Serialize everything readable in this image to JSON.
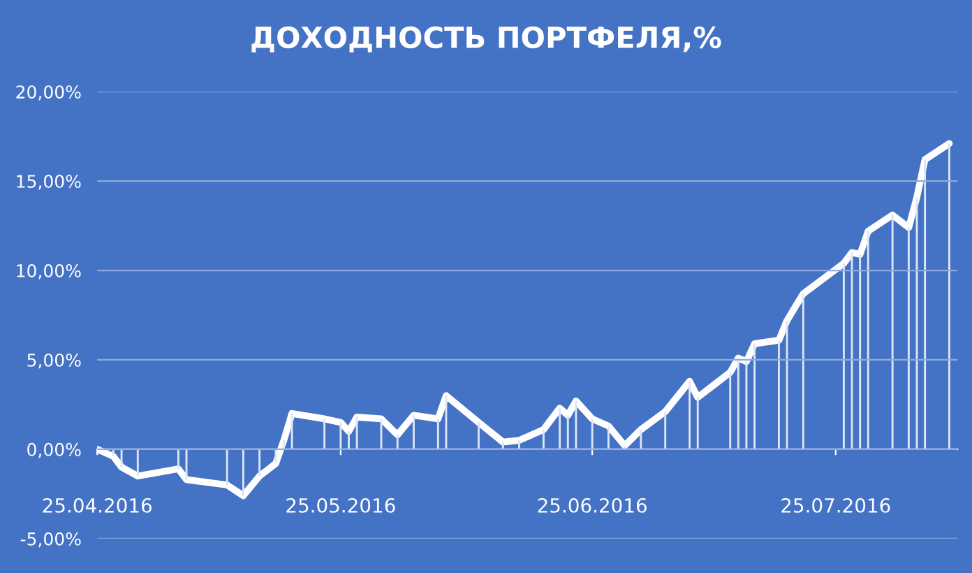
{
  "chart_data": {
    "type": "line",
    "title": "ДОХОДНОСТЬ ПОРТФЕЛЯ,%",
    "x": [
      "2016-04-25",
      "2016-04-27",
      "2016-04-28",
      "2016-04-30",
      "2016-05-05",
      "2016-05-06",
      "2016-05-11",
      "2016-05-13",
      "2016-05-15",
      "2016-05-17",
      "2016-05-18",
      "2016-05-19",
      "2016-05-23",
      "2016-05-25",
      "2016-05-26",
      "2016-05-27",
      "2016-05-30",
      "2016-06-01",
      "2016-06-03",
      "2016-06-06",
      "2016-06-07",
      "2016-06-11",
      "2016-06-14",
      "2016-06-16",
      "2016-06-19",
      "2016-06-21",
      "2016-06-22",
      "2016-06-23",
      "2016-06-25",
      "2016-06-27",
      "2016-06-29",
      "2016-07-01",
      "2016-07-04",
      "2016-07-07",
      "2016-07-08",
      "2016-07-12",
      "2016-07-13",
      "2016-07-14",
      "2016-07-15",
      "2016-07-18",
      "2016-07-19",
      "2016-07-21",
      "2016-07-26",
      "2016-07-27",
      "2016-07-28",
      "2016-07-29",
      "2016-08-01",
      "2016-08-03",
      "2016-08-04",
      "2016-08-05",
      "2016-08-08"
    ],
    "series": [
      {
        "type": "bar",
        "color": "#dce6f5",
        "values": [
          0.0,
          -0.4,
          -1.0,
          -1.5,
          -1.1,
          -1.7,
          -2.0,
          -2.6,
          -1.5,
          -0.8,
          0.5,
          2.0,
          1.7,
          1.5,
          1.0,
          1.8,
          1.7,
          0.8,
          1.9,
          1.7,
          3.0,
          1.5,
          0.4,
          0.5,
          1.1,
          2.3,
          1.9,
          2.7,
          1.7,
          1.3,
          0.2,
          1.1,
          2.1,
          3.8,
          2.9,
          4.3,
          5.1,
          4.9,
          5.9,
          6.1,
          7.2,
          8.7,
          10.4,
          11.0,
          10.9,
          12.2,
          13.1,
          12.4,
          14.1,
          16.2,
          17.1
        ]
      },
      {
        "color": "#ffffff",
        "values": [
          0.0,
          -0.4,
          -1.0,
          -1.5,
          -1.1,
          -1.7,
          -2.0,
          -2.6,
          -1.5,
          -0.8,
          0.5,
          2.0,
          1.7,
          1.5,
          1.0,
          1.8,
          1.7,
          0.8,
          1.9,
          1.7,
          3.0,
          1.5,
          0.4,
          0.5,
          1.1,
          2.3,
          1.9,
          2.7,
          1.7,
          1.3,
          0.2,
          1.1,
          2.1,
          3.8,
          2.9,
          4.3,
          5.1,
          4.9,
          5.9,
          6.1,
          7.2,
          8.7,
          10.4,
          11.0,
          10.9,
          12.2,
          13.1,
          12.4,
          14.1,
          16.2,
          17.1
        ]
      }
    ],
    "xlim": [
      "2016-04-25",
      "2016-08-09"
    ],
    "xticks": [
      {
        "value": "2016-04-25",
        "label": "25.04.2016"
      },
      {
        "value": "2016-05-25",
        "label": "25.05.2016"
      },
      {
        "value": "2016-06-25",
        "label": "25.06.2016"
      },
      {
        "value": "2016-07-25",
        "label": "25.07.2016"
      }
    ],
    "ylim": [
      -5,
      20
    ],
    "yticks": [
      {
        "value": -5,
        "label": "-5,00%"
      },
      {
        "value": 0,
        "label": "0,00%"
      },
      {
        "value": 5,
        "label": "5,00%"
      },
      {
        "value": 10,
        "label": "10,00%"
      },
      {
        "value": 15,
        "label": "15,00%"
      },
      {
        "value": 20,
        "label": "20,00%"
      }
    ],
    "grid": "y",
    "marker": "none",
    "line_style": "solid"
  }
}
